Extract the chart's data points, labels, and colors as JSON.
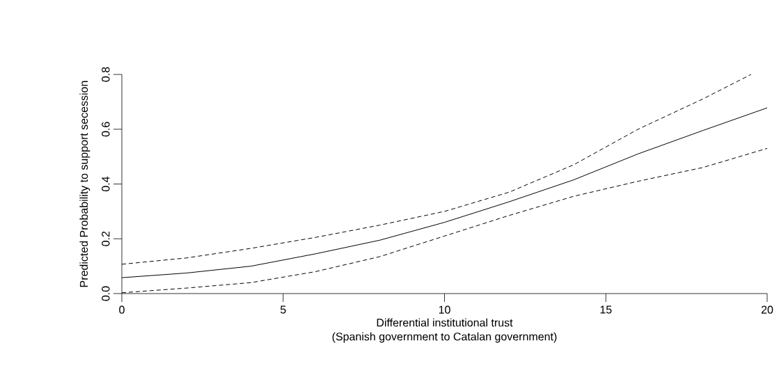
{
  "chart_data": {
    "type": "line",
    "xlabel": "Differential institutional trust\n(Spanish government to Catalan government)",
    "ylabel": "Predicted Probability to support secession",
    "xlim": [
      0,
      20
    ],
    "ylim": [
      0,
      0.8
    ],
    "xticks": [
      0,
      5,
      10,
      15,
      20
    ],
    "yticks": [
      {
        "value": 0,
        "label": "0.0"
      },
      0.2,
      0.4,
      0.6,
      0.8
    ],
    "grid": false,
    "series": [
      {
        "color": "#000000",
        "line_style": "solid",
        "x": [
          0,
          2,
          4,
          6,
          8,
          10,
          12,
          14,
          16,
          18,
          20
        ],
        "values": [
          0.058,
          0.075,
          0.1,
          0.145,
          0.195,
          0.26,
          0.335,
          0.415,
          0.51,
          0.595,
          0.678
        ]
      },
      {
        "color": "#000000",
        "line_style": "dashed",
        "x": [
          0,
          2,
          4,
          6,
          8,
          10,
          12,
          14,
          16,
          18,
          19.5
        ],
        "values": [
          0.107,
          0.13,
          0.165,
          0.205,
          0.25,
          0.3,
          0.37,
          0.47,
          0.6,
          0.71,
          0.8
        ]
      },
      {
        "color": "#000000",
        "line_style": "dashed",
        "x": [
          0,
          2,
          4,
          6,
          8,
          10,
          12,
          14,
          16,
          18,
          20
        ],
        "values": [
          0.003,
          0.02,
          0.04,
          0.08,
          0.135,
          0.21,
          0.285,
          0.355,
          0.41,
          0.46,
          0.53
        ]
      }
    ]
  }
}
